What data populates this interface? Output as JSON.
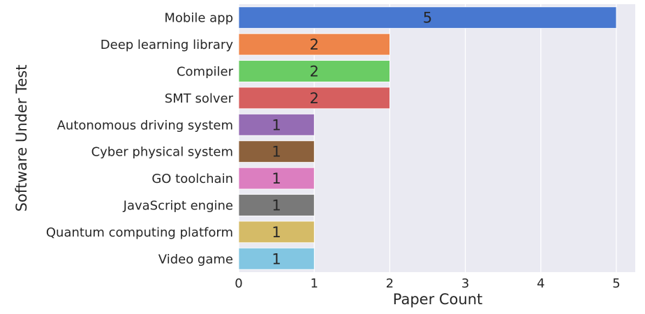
{
  "chart_data": {
    "type": "bar",
    "orientation": "horizontal",
    "title": "",
    "xlabel": "Paper Count",
    "ylabel": "Software Under Test",
    "xlim": [
      0,
      5.25
    ],
    "xticks": [
      0,
      1,
      2,
      3,
      4,
      5
    ],
    "grid": true,
    "legend": "none",
    "background": "#eaeaf2",
    "categories": [
      "Mobile app",
      "Deep learning library",
      "Compiler",
      "SMT solver",
      "Autonomous driving system",
      "Cyber physical system",
      "GO toolchain",
      "JavaScript engine",
      "Quantum computing platform",
      "Video game"
    ],
    "values": [
      5,
      2,
      2,
      2,
      1,
      1,
      1,
      1,
      1,
      1
    ],
    "data_labels": [
      "5",
      "2",
      "2",
      "2",
      "1",
      "1",
      "1",
      "1",
      "1",
      "1"
    ],
    "colors": [
      "#4878d0",
      "#ee854a",
      "#6acc64",
      "#d65f5f",
      "#956cb4",
      "#8c613c",
      "#dc7ec0",
      "#797979",
      "#d5bb67",
      "#82c6e2"
    ]
  }
}
